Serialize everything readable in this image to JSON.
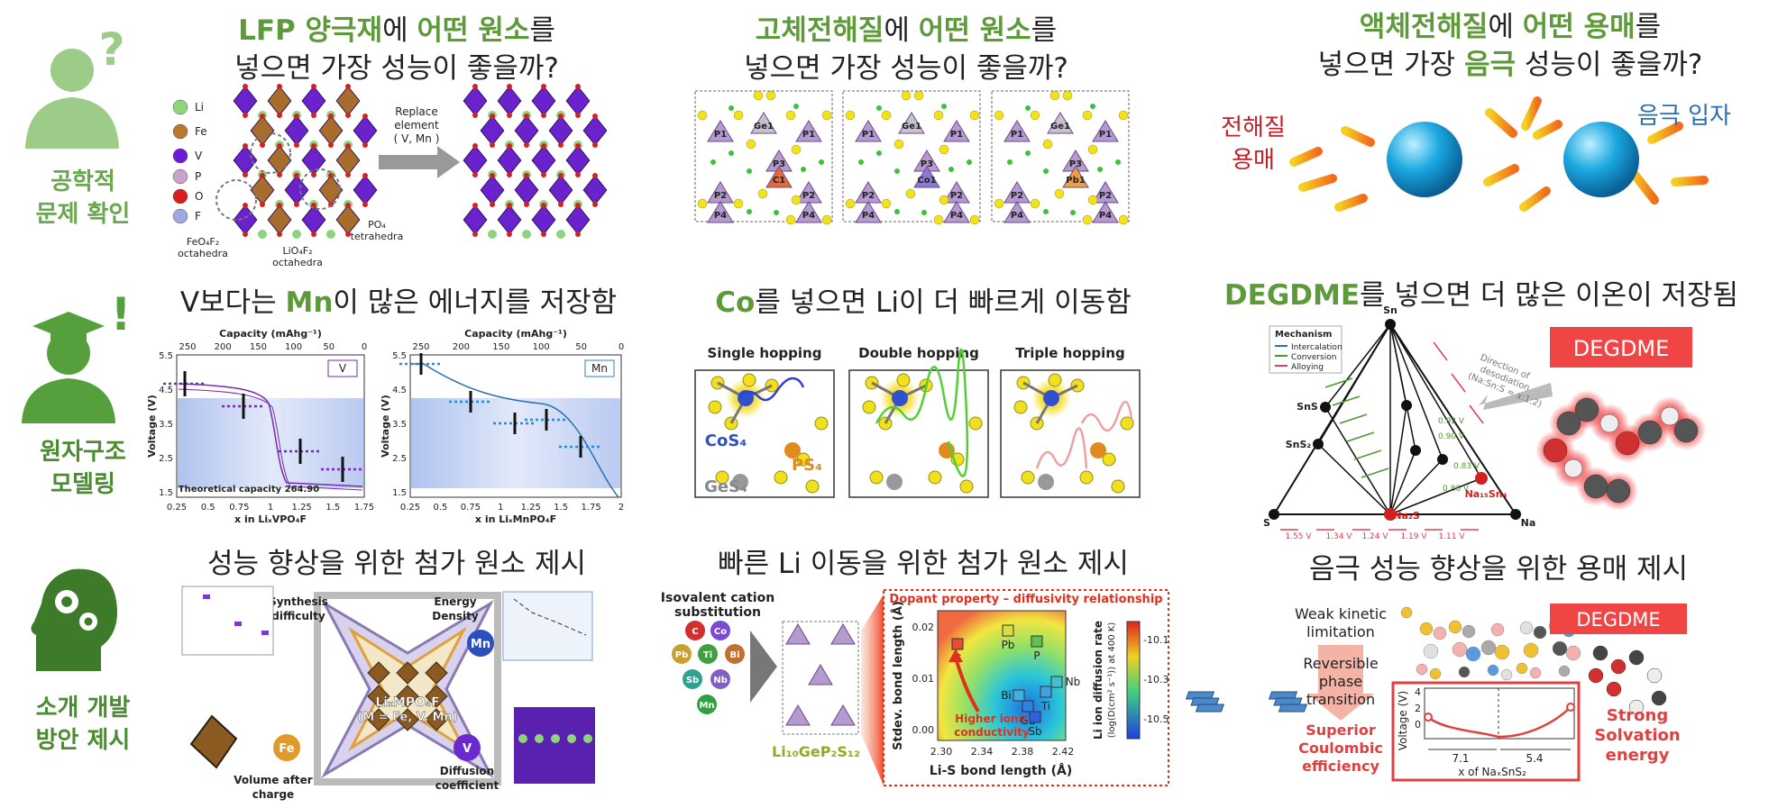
{
  "sidebar": [
    {
      "lines": [
        "공학적",
        "문제 확인"
      ]
    },
    {
      "lines": [
        "원자구조",
        "모델링"
      ]
    },
    {
      "lines": [
        "소개 개발",
        "방안 제시"
      ]
    }
  ],
  "sidebar_marks": [
    "?",
    "!"
  ],
  "panels": [
    {
      "heading": [
        [
          {
            "text": "LFP 양극재",
            "color": "#5e9a3a",
            "bold": true
          },
          {
            "text": "에 ",
            "color": "#222"
          },
          {
            "text": "어떤 원소",
            "color": "#5e9a3a",
            "bold": true
          },
          {
            "text": "를",
            "color": "#222"
          }
        ],
        [
          {
            "text": "넣으면 가장 성능이 좋을까?",
            "color": "#222"
          }
        ]
      ],
      "texts": [
        "Li",
        "Fe",
        "V",
        "P",
        "O",
        "F",
        "Replace",
        "element",
        "( V, Mn )",
        "FeO₄F₂",
        "octahedra",
        "LiO₄F₂",
        "octahedra",
        "PO₄",
        "tetrahedra"
      ]
    },
    {
      "heading": [
        [
          {
            "text": "고체전해질",
            "color": "#5e9a3a",
            "bold": true
          },
          {
            "text": "에 ",
            "color": "#222"
          },
          {
            "text": "어떤 원소",
            "color": "#5e9a3a",
            "bold": true
          },
          {
            "text": "를",
            "color": "#222"
          }
        ],
        [
          {
            "text": "넣으면 가장 성능이 좋을까?",
            "color": "#222"
          }
        ]
      ],
      "texts": [
        "Ge1",
        "P1",
        "P3",
        "C1",
        "Co1",
        "Pb1",
        "P2",
        "P4"
      ]
    },
    {
      "heading": [
        [
          {
            "text": "액체전해질",
            "color": "#5e9a3a",
            "bold": true
          },
          {
            "text": "에 ",
            "color": "#222"
          },
          {
            "text": "어떤 용매",
            "color": "#5e9a3a",
            "bold": true
          },
          {
            "text": "를",
            "color": "#222"
          }
        ],
        [
          {
            "text": "넣으면 가장 ",
            "color": "#222"
          },
          {
            "text": "음극",
            "color": "#5e9a3a",
            "bold": true
          },
          {
            "text": " 성능이 좋을까?",
            "color": "#222"
          }
        ]
      ],
      "texts": [
        "전해질",
        "용매",
        "음극 입자"
      ]
    },
    {
      "heading": [
        [
          {
            "text": "V보다는 ",
            "color": "#222"
          },
          {
            "text": "Mn",
            "color": "#5e9a3a",
            "bold": true
          },
          {
            "text": "이 많은 에너지를 저장함",
            "color": "#222"
          }
        ]
      ],
      "texts": [
        "Capacity (mAhg⁻¹)",
        "Voltage (V)",
        "x in LiₓVPO₄F",
        "x in LiₓMnPO₄F",
        "V",
        "Mn",
        "Theoretical capacity 264.90"
      ],
      "top_ticks": [
        "250",
        "200",
        "150",
        "100",
        "50",
        "0"
      ],
      "y_ticks": [
        "5.5",
        "4.5",
        "3.5",
        "2.5",
        "1.5"
      ],
      "x_ticks_a": [
        "0.25",
        "0.5",
        "0.75",
        "1",
        "1.25",
        "1.5",
        "1.75"
      ],
      "x_ticks_b": [
        "0.25",
        "0.5",
        "0.75",
        "1",
        "1.25",
        "1.5",
        "1.75",
        "2"
      ]
    },
    {
      "heading": [
        [
          {
            "text": "Co",
            "color": "#5e9a3a",
            "bold": true
          },
          {
            "text": "를 넣으면 Li이 더 빠르게 이동함",
            "color": "#222"
          }
        ]
      ],
      "texts": [
        "Single hopping",
        "Double hopping",
        "Triple hopping",
        "CoS₄",
        "PS₄",
        "GeS₄"
      ]
    },
    {
      "heading": [
        [
          {
            "text": "DEGDME",
            "color": "#5e9a3a",
            "bold": true
          },
          {
            "text": "를 넣으면 더 많은 이온이 저장됨",
            "color": "#222"
          }
        ]
      ],
      "texts": [
        "Mechanism",
        "Intercalation",
        "Conversion",
        "Alloying",
        "Sn",
        "S",
        "Na",
        "SnS",
        "SnS₂",
        "Na₁₅Sn₄",
        "Na₂S",
        "Direction of",
        "desodiation",
        "(Na:Sn:S = x:1:2)",
        "DEGDME",
        "0.92 V",
        "0.90 V",
        "0.83 V",
        "0.86 V",
        "1.55 V",
        "1.34 V",
        "1.24 V",
        "1.19 V",
        "1.11 V"
      ]
    },
    {
      "heading": [
        [
          {
            "text": "성능 향상을 위한 첨가 원소 제시",
            "color": "#222"
          }
        ]
      ],
      "texts": [
        "Synthesis",
        "difficulty",
        "Energy",
        "Density",
        "Volume after",
        "charge",
        "Diffusion",
        "coefficient",
        "LiₓMPO₄F",
        "(M = Fe, V, Mn)",
        "Mn",
        "Fe",
        "V"
      ]
    },
    {
      "heading": [
        [
          {
            "text": "빠른 Li 이동을 위한 첨가 원소 제시",
            "color": "#222"
          }
        ]
      ],
      "texts": [
        "Isovalent cation",
        "substitution",
        "Li₁₀GeP₂S₁₂",
        "Dopant property – diffusivity relationship",
        "Stdev. bond length (Å)",
        "Li-S bond length (Å)",
        "Li ion diffusion rate",
        "(log(D(cm² s⁻¹)) at 400 K)",
        "Higher ionic",
        "conductivity"
      ],
      "elements": [
        "C",
        "Co",
        "Pb",
        "Ti",
        "Bi",
        "Sb",
        "Nb",
        "Mn"
      ],
      "points": [
        "C",
        "Pb",
        "P",
        "Bi",
        "Ge",
        "Ti",
        "Nb",
        "Sb"
      ],
      "x_ticks": [
        "2.30",
        "2.34",
        "2.38",
        "2.42"
      ],
      "y_ticks": [
        "0.02",
        "0.01",
        "0.00"
      ],
      "c_ticks": [
        "-10.1",
        "-10.3",
        "-10.5"
      ]
    },
    {
      "heading": [
        [
          {
            "text": "음극 성능 향상을 위한 용매 제시",
            "color": "#222"
          }
        ]
      ],
      "texts": [
        "Weak kinetic",
        "limitation",
        "Reversible",
        "phase",
        "transition",
        "Superior",
        "Coulombic",
        "efficiency",
        "DEGDME",
        "Strong",
        "Solvation",
        "energy",
        "Voltage (V)",
        "x of NaₓSnS₂",
        "7.1",
        "5.4"
      ],
      "y_ticks": [
        "4",
        "2",
        "0"
      ]
    }
  ]
}
